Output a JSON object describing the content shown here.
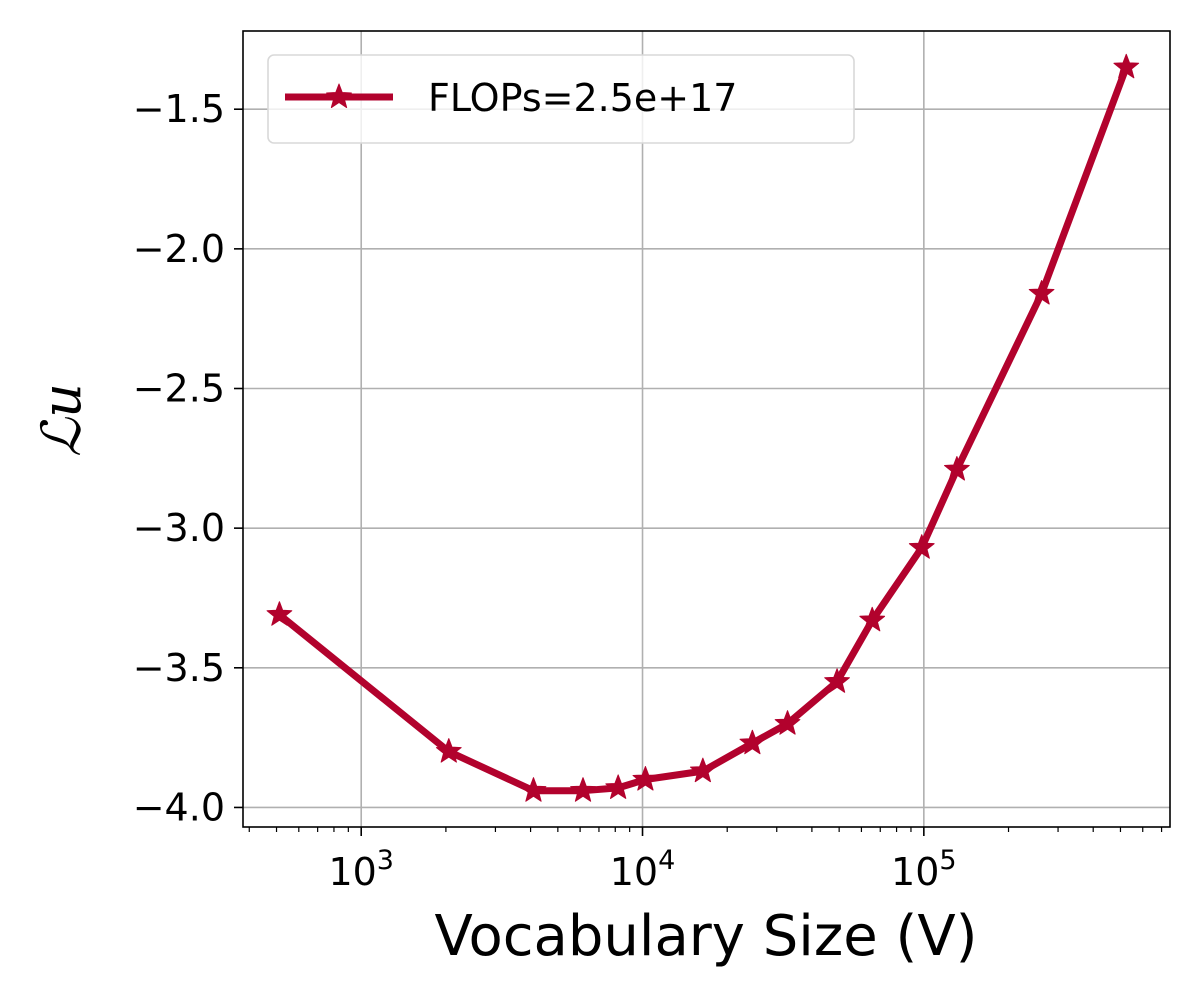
{
  "chart_data": {
    "type": "line",
    "title": "",
    "xlabel": "Vocabulary Size (V)",
    "ylabel": "ℒu",
    "x_scale": "log",
    "xlim": [
      380,
      750000
    ],
    "ylim": [
      -4.07,
      -1.22
    ],
    "xticks": [
      {
        "value": 1000,
        "base": "10",
        "exp": "3"
      },
      {
        "value": 10000,
        "base": "10",
        "exp": "4"
      },
      {
        "value": 100000,
        "base": "10",
        "exp": "5"
      }
    ],
    "yticks": [
      {
        "value": -1.5,
        "label": "−1.5"
      },
      {
        "value": -2.0,
        "label": "−2.0"
      },
      {
        "value": -2.5,
        "label": "−2.5"
      },
      {
        "value": -3.0,
        "label": "−3.0"
      },
      {
        "value": -3.5,
        "label": "−3.5"
      },
      {
        "value": -4.0,
        "label": "−4.0"
      }
    ],
    "grid": true,
    "legend_position": "top-left",
    "series": [
      {
        "name": "FLOPs=2.5e+17",
        "color": "#b2022d",
        "marker": "star",
        "x": [
          512,
          2048,
          4096,
          6144,
          8192,
          10240,
          16384,
          24576,
          32768,
          49152,
          65536,
          98304,
          131072,
          262144,
          524288
        ],
        "y": [
          -3.31,
          -3.8,
          -3.94,
          -3.94,
          -3.93,
          -3.9,
          -3.87,
          -3.77,
          -3.7,
          -3.55,
          -3.33,
          -3.07,
          -2.79,
          -2.16,
          -1.35
        ]
      }
    ]
  }
}
